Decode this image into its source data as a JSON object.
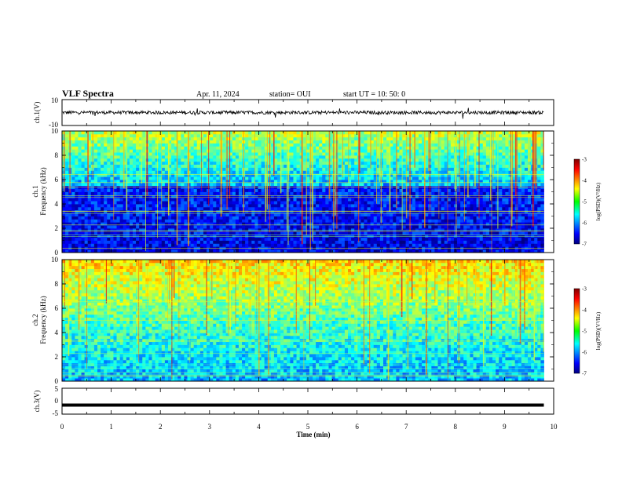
{
  "header": {
    "title": "VLF Spectra",
    "date": "Apr. 11, 2024",
    "station": "station= OUI",
    "start": "start  UT =   10: 50: 0"
  },
  "chart_data": [
    {
      "type": "line",
      "name": "ch1-waveform",
      "ylabel": "ch.1(V)",
      "ylim": [
        -10,
        10
      ],
      "yticks": [
        "10",
        "-10"
      ],
      "xlim": [
        0,
        10
      ],
      "baseline": 0,
      "color": "#000000"
    },
    {
      "type": "heatmap",
      "name": "ch1-spectrogram",
      "ylabel": "ch.1\nFrequency (kHz)",
      "ylim": [
        0,
        10
      ],
      "yticks": [
        "0",
        "2",
        "4",
        "6",
        "8",
        "10"
      ],
      "xlim": [
        0,
        10
      ],
      "data_end_min": 9.8,
      "colorbar": {
        "label": "log(PSD)(V²/Hz)",
        "range": [
          -7,
          -3
        ],
        "ticks": [
          "-3",
          "-4",
          "-5",
          "-6",
          "-7"
        ]
      }
    },
    {
      "type": "heatmap",
      "name": "ch2-spectrogram",
      "ylabel": "ch.2\nFrequency (kHz)",
      "ylim": [
        0,
        10
      ],
      "yticks": [
        "0",
        "2",
        "4",
        "6",
        "8",
        "10"
      ],
      "xlim": [
        0,
        10
      ],
      "data_end_min": 9.8,
      "colorbar": {
        "label": "log(PSD)(V²/Hz)",
        "range": [
          -7,
          -3
        ],
        "ticks": [
          "-3",
          "-4",
          "-5",
          "-6",
          "-7"
        ]
      }
    },
    {
      "type": "line",
      "name": "ch3-waveform",
      "ylabel": "ch.3(V)",
      "ylim": [
        -5,
        5
      ],
      "yticks": [
        "5",
        "0",
        "-5"
      ],
      "xlim": [
        0,
        10
      ],
      "baseline": -1.5,
      "color": "#000000"
    }
  ],
  "xaxis": {
    "label": "Time (min)",
    "ticks": [
      "0",
      "1",
      "2",
      "3",
      "4",
      "5",
      "6",
      "7",
      "8",
      "9",
      "10"
    ]
  }
}
